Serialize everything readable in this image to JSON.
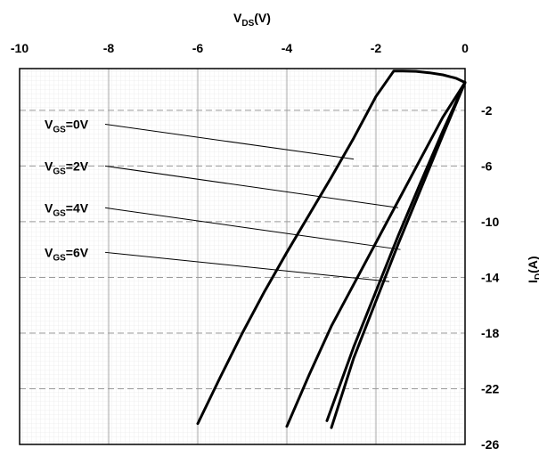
{
  "chart_data": {
    "type": "line",
    "xlabel": {
      "main": "V",
      "sub": "DS",
      "tail": "(V)"
    },
    "ylabel": {
      "main": "I",
      "sub": "D",
      "tail": "(A)"
    },
    "xlim": [
      -10,
      0
    ],
    "ylim": [
      -26,
      1
    ],
    "x_ticks": [
      -10,
      -8,
      -6,
      -4,
      -2,
      0
    ],
    "y_ticks": [
      -2,
      -6,
      -10,
      -14,
      -18,
      -22,
      -26
    ],
    "x_axis_position": "top",
    "y_axis_position": "right",
    "grid": true,
    "series": [
      {
        "name": "VGS=0V",
        "x": [
          0,
          -0.2,
          -0.5,
          -0.8,
          -1.1,
          -1.4,
          -1.6,
          -2.0,
          -2.5,
          -3.0,
          -3.5,
          -4.0,
          -4.5,
          -5.0,
          -5.5,
          -6.0
        ],
        "y": [
          0,
          0.3,
          0.55,
          0.7,
          0.8,
          0.83,
          0.83,
          -1.0,
          -4.0,
          -6.8,
          -9.5,
          -12.2,
          -15.0,
          -18.0,
          -21.2,
          -24.5
        ]
      },
      {
        "name": "VGS=2V",
        "x": [
          0,
          -0.5,
          -1.0,
          -1.5,
          -2.0,
          -2.5,
          -3.0,
          -3.5,
          -4.0
        ],
        "y": [
          0,
          -2.5,
          -5.5,
          -8.5,
          -11.5,
          -14.5,
          -17.5,
          -21.0,
          -24.7
        ]
      },
      {
        "name": "VGS=4V",
        "x": [
          0,
          -0.5,
          -1.0,
          -1.5,
          -2.0,
          -2.5,
          -3.1
        ],
        "y": [
          0,
          -3.5,
          -7.2,
          -11.0,
          -15.0,
          -19.0,
          -24.3
        ]
      },
      {
        "name": "VGS=6V",
        "x": [
          0,
          -0.5,
          -1.0,
          -1.5,
          -2.0,
          -2.5,
          -3.0
        ],
        "y": [
          0,
          -3.8,
          -7.7,
          -11.6,
          -15.7,
          -19.8,
          -24.8
        ]
      }
    ],
    "annotations": [
      {
        "main": "V",
        "sub": "GS",
        "tail": "=0V",
        "label_anchor": [
          -9.4,
          -3.0
        ],
        "line_to": [
          -2.5,
          -5.5
        ]
      },
      {
        "main": "V",
        "sub": "GS",
        "tail": "=2V",
        "label_anchor": [
          -9.4,
          -6.0
        ],
        "line_to": [
          -1.5,
          -9.0
        ]
      },
      {
        "main": "V",
        "sub": "GS",
        "tail": "=4V",
        "label_anchor": [
          -9.4,
          -9.0
        ],
        "line_to": [
          -1.45,
          -12.0
        ]
      },
      {
        "main": "V",
        "sub": "GS",
        "tail": "=6V",
        "label_anchor": [
          -9.4,
          -12.2
        ],
        "line_to": [
          -1.7,
          -14.3
        ]
      }
    ]
  }
}
